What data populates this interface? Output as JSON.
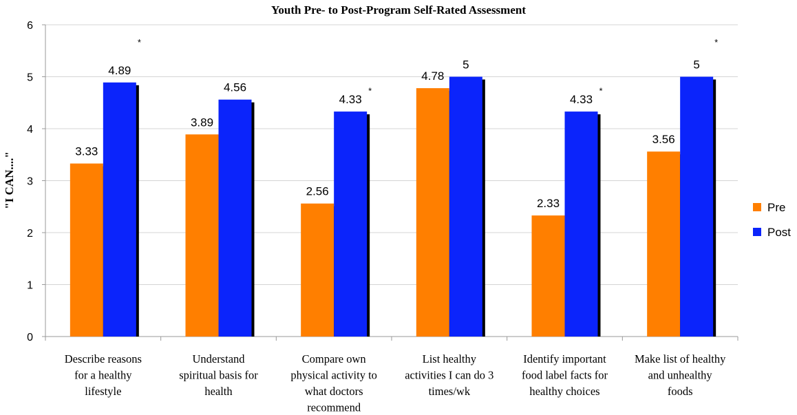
{
  "chart_data": {
    "type": "bar",
    "title": "Youth Pre- to Post-Program Self-Rated Assessment",
    "xlabel": "",
    "ylabel": "\"I CAN....\"",
    "ylim": [
      0,
      6
    ],
    "yticks": [
      0,
      1,
      2,
      3,
      4,
      5,
      6
    ],
    "grid": true,
    "legend_position": "right",
    "categories": [
      [
        "Describe reasons",
        "for a healthy",
        "lifestyle"
      ],
      [
        "Understand",
        "spiritual basis for",
        "health"
      ],
      [
        "Compare own",
        "physical activity to",
        "what doctors",
        "recommend"
      ],
      [
        "List healthy",
        "activities I can do 3",
        "times/wk"
      ],
      [
        "Identify important",
        "food label facts for",
        "healthy choices"
      ],
      [
        "Make list of healthy",
        "and unhealthy",
        "foods"
      ]
    ],
    "series": [
      {
        "name": "Pre",
        "color": "#ff7f00",
        "values": [
          3.33,
          3.89,
          2.56,
          4.78,
          2.33,
          3.56
        ]
      },
      {
        "name": "Post",
        "color": "#0b24fb",
        "values": [
          4.89,
          4.56,
          4.33,
          5,
          4.33,
          5
        ]
      }
    ],
    "significance_marker": "*",
    "significant": [
      true,
      false,
      true,
      false,
      true,
      true
    ]
  }
}
